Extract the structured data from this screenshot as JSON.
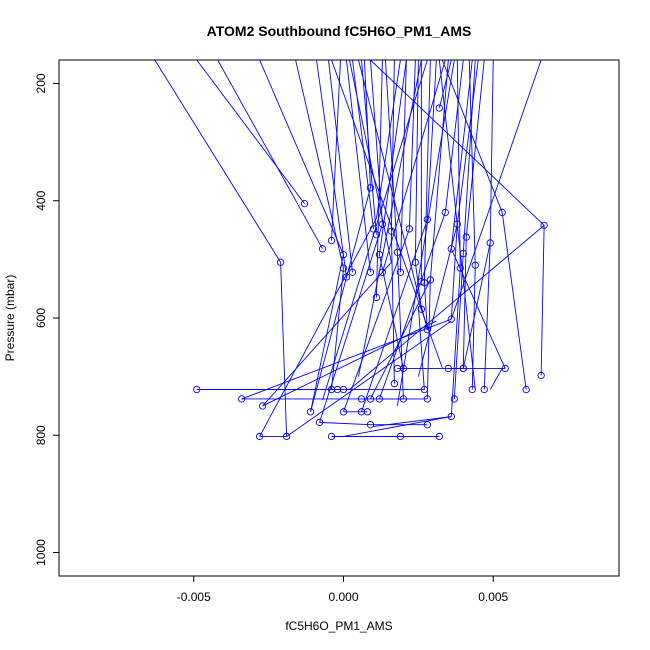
{
  "chart_data": {
    "type": "line",
    "title": "ATOM2 Southbound fC5H6O_PM1_AMS",
    "xlabel": "fC5H6O_PM1_AMS",
    "ylabel": "Pressure (mbar)",
    "xlim": [
      -0.0095,
      0.0092
    ],
    "ylim": [
      1040,
      160
    ],
    "y_reversed": true,
    "grid": false,
    "x_tick_labels": [
      "-0.005",
      "0.000",
      "0.005"
    ],
    "x_tick_values": [
      -0.005,
      0.0,
      0.005
    ],
    "y_tick_labels": [
      "200",
      "400",
      "600",
      "800",
      "1000"
    ],
    "y_tick_values": [
      200,
      400,
      600,
      800,
      1000
    ],
    "series_color": "#0000ff",
    "series": [
      {
        "marker": "open-circle",
        "points": [
          [
            -0.0049,
            722
          ],
          [
            0.0,
            722
          ],
          [
            -0.0034,
            738
          ],
          [
            0.002,
            738
          ],
          [
            -0.0027,
            750
          ],
          [
            -0.0011,
            760
          ],
          [
            -0.0008,
            778
          ],
          [
            0.0009,
            782
          ],
          [
            0.0028,
            782
          ],
          [
            -0.0028,
            802
          ],
          [
            -0.0019,
            802
          ],
          [
            -0.0004,
            802
          ],
          [
            0.0019,
            802
          ],
          [
            0.0032,
            802
          ],
          [
            0.0,
            760
          ],
          [
            0.0006,
            760
          ],
          [
            0.0008,
            760
          ],
          [
            0.0036,
            768
          ],
          [
            0.0006,
            738
          ],
          [
            0.0009,
            738
          ],
          [
            0.0012,
            738
          ],
          [
            0.0028,
            738
          ],
          [
            0.0037,
            738
          ],
          [
            0.0017,
            712
          ],
          [
            -0.0004,
            722
          ],
          [
            -0.0002,
            722
          ],
          [
            0.0027,
            722
          ],
          [
            0.0043,
            722
          ],
          [
            0.0047,
            722
          ],
          [
            0.0061,
            722
          ],
          [
            0.0018,
            686
          ],
          [
            0.002,
            686
          ],
          [
            0.0035,
            686
          ],
          [
            0.004,
            686
          ],
          [
            0.0054,
            686
          ],
          [
            0.0066,
            698
          ],
          [
            0.0036,
            602
          ],
          [
            0.0028,
            620
          ],
          [
            0.0026,
            585
          ],
          [
            -0.0021,
            505
          ],
          [
            -0.0013,
            405
          ],
          [
            -0.0007,
            482
          ],
          [
            0.0,
            492
          ],
          [
            0.0,
            515
          ],
          [
            0.0001,
            530
          ],
          [
            0.0003,
            522
          ],
          [
            0.0009,
            522
          ],
          [
            0.0013,
            522
          ],
          [
            0.0019,
            522
          ],
          [
            0.0011,
            565
          ],
          [
            -0.0004,
            468
          ],
          [
            0.001,
            448
          ],
          [
            0.0011,
            458
          ],
          [
            0.0013,
            440
          ],
          [
            0.0016,
            452
          ],
          [
            0.0018,
            488
          ],
          [
            0.0022,
            448
          ],
          [
            0.0012,
            492
          ],
          [
            0.0027,
            540
          ],
          [
            0.0029,
            535
          ],
          [
            0.0024,
            505
          ],
          [
            0.0028,
            432
          ],
          [
            0.0034,
            420
          ],
          [
            0.0036,
            482
          ],
          [
            0.0038,
            440
          ],
          [
            0.004,
            490
          ],
          [
            0.0039,
            515
          ],
          [
            0.0041,
            462
          ],
          [
            0.0044,
            510
          ],
          [
            0.0049,
            472
          ],
          [
            0.0053,
            420
          ],
          [
            0.0067,
            442
          ],
          [
            0.0032,
            242
          ],
          [
            0.0009,
            378
          ],
          [
            0.0026,
            538
          ],
          [
            0.004,
            686
          ]
        ],
        "segments": [
          [
            -0.0049,
            722,
            0.0,
            722
          ],
          [
            -0.0034,
            738,
            0.002,
            738
          ],
          [
            -0.0027,
            750,
            0.0031,
            605
          ],
          [
            -0.0028,
            802,
            -0.0019,
            802
          ],
          [
            -0.0004,
            802,
            0.0019,
            802
          ],
          [
            0.0009,
            782,
            0.0028,
            782
          ],
          [
            -0.0008,
            778,
            0.0009,
            782
          ],
          [
            0.0,
            760,
            0.0008,
            760
          ],
          [
            0.0012,
            738,
            0.0028,
            738
          ],
          [
            0.0018,
            686,
            0.0054,
            686
          ],
          [
            0.0035,
            686,
            0.004,
            686
          ],
          [
            -0.0049,
            722,
            0.0027,
            722
          ],
          [
            -0.0019,
            802,
            0.0036,
            605
          ],
          [
            -0.0004,
            802,
            0.0032,
            802
          ],
          [
            0.0,
            802,
            0.0036,
            768
          ],
          [
            0.0019,
            802,
            0.0032,
            802
          ],
          [
            0.001,
            785,
            0.0036,
            768
          ],
          [
            -0.0021,
            505,
            -0.0019,
            802
          ],
          [
            -0.0027,
            750,
            0.0016,
            505
          ],
          [
            -0.0034,
            738,
            0.0036,
            602
          ],
          [
            -0.0028,
            802,
            0.0011,
            430
          ],
          [
            -0.0011,
            760,
            0.0009,
            378
          ],
          [
            -0.0008,
            778,
            0.0013,
            440
          ],
          [
            0.0,
            760,
            0.0022,
            448
          ],
          [
            0.0006,
            760,
            0.0028,
            432
          ],
          [
            0.0009,
            738,
            0.0029,
            535
          ],
          [
            0.0012,
            738,
            0.0034,
            420
          ],
          [
            0.0028,
            738,
            0.0029,
            535
          ],
          [
            0.0037,
            738,
            0.004,
            490
          ],
          [
            0.0043,
            722,
            0.0044,
            510
          ],
          [
            0.0047,
            722,
            0.0049,
            472
          ],
          [
            0.0061,
            722,
            0.0053,
            420
          ],
          [
            0.0066,
            698,
            0.0067,
            442
          ],
          [
            0.004,
            686,
            0.0041,
            462
          ],
          [
            0.0054,
            686,
            0.0036,
            482
          ],
          [
            0.0036,
            602,
            0.0038,
            440
          ],
          [
            0.0026,
            585,
            0.0024,
            505
          ],
          [
            0.0028,
            620,
            0.0027,
            540
          ],
          [
            0.0036,
            768,
            0.0039,
            515
          ],
          [
            -0.0011,
            760,
            0.0,
            492
          ],
          [
            0.0017,
            712,
            0.0016,
            452
          ],
          [
            -0.0004,
            722,
            0.0,
            515
          ],
          [
            0.002,
            738,
            0.0018,
            488
          ],
          [
            0.002,
            686,
            0.0012,
            492
          ],
          [
            0.0049,
            722,
            0.0053,
            686
          ],
          [
            0.0027,
            722,
            0.0025,
            580
          ],
          [
            0.0002,
            722,
            0.0067,
            442
          ],
          [
            0.004,
            686,
            0.0049,
            472
          ],
          [
            0.0025,
            700,
            0.0038,
            440
          ],
          [
            -0.0021,
            505,
            -0.0063,
            160
          ],
          [
            -0.0013,
            405,
            -0.0049,
            160
          ],
          [
            -0.0007,
            482,
            -0.0042,
            160
          ],
          [
            0.0,
            492,
            -0.0028,
            160
          ],
          [
            0.0,
            515,
            -0.0016,
            160
          ],
          [
            0.0001,
            530,
            -0.0009,
            160
          ],
          [
            0.0003,
            522,
            -0.0005,
            160
          ],
          [
            -0.0004,
            468,
            -0.0001,
            160
          ],
          [
            0.0009,
            522,
            0.0001,
            160
          ],
          [
            0.001,
            448,
            0.0003,
            160
          ],
          [
            0.0011,
            458,
            0.0006,
            160
          ],
          [
            0.0011,
            565,
            0.0013,
            160
          ],
          [
            0.0013,
            440,
            0.0009,
            160
          ],
          [
            0.0016,
            452,
            0.0017,
            160
          ],
          [
            0.0018,
            488,
            0.0014,
            160
          ],
          [
            0.0019,
            522,
            0.0021,
            160
          ],
          [
            0.0022,
            448,
            0.0024,
            160
          ],
          [
            0.0024,
            505,
            0.0025,
            160
          ],
          [
            0.0026,
            538,
            0.0026,
            160
          ],
          [
            0.0027,
            540,
            0.0029,
            160
          ],
          [
            0.0028,
            432,
            0.0031,
            160
          ],
          [
            0.0029,
            535,
            0.0035,
            160
          ],
          [
            0.0032,
            242,
            0.0036,
            160
          ],
          [
            0.0034,
            420,
            0.004,
            160
          ],
          [
            0.0036,
            482,
            0.0043,
            160
          ],
          [
            0.0038,
            440,
            0.0045,
            160
          ],
          [
            0.0039,
            515,
            0.0038,
            160
          ],
          [
            0.0041,
            462,
            0.0047,
            160
          ],
          [
            0.0044,
            510,
            0.0042,
            160
          ],
          [
            0.0049,
            472,
            0.005,
            160
          ],
          [
            0.0053,
            420,
            0.0033,
            160
          ],
          [
            0.0067,
            442,
            0.0009,
            160
          ],
          [
            0.0036,
            602,
            0.0066,
            160
          ],
          [
            0.0013,
            522,
            0.0034,
            160
          ],
          [
            0.0009,
            378,
            0.0007,
            160
          ],
          [
            0.0012,
            492,
            0.0021,
            160
          ],
          [
            0.0028,
            620,
            0.0005,
            160
          ],
          [
            0.0016,
            505,
            0.0002,
            160
          ],
          [
            0.0033,
            685,
            -0.0004,
            160
          ],
          [
            0.0011,
            430,
            0.0019,
            160
          ],
          [
            0.004,
            490,
            0.0044,
            160
          ],
          [
            0.0044,
            722,
            0.0032,
            160
          ],
          [
            0.0005,
            700,
            0.0026,
            160
          ],
          [
            0.0018,
            750,
            0.0037,
            160
          ],
          [
            -0.0007,
            740,
            0.0028,
            160
          ]
        ]
      }
    ]
  }
}
